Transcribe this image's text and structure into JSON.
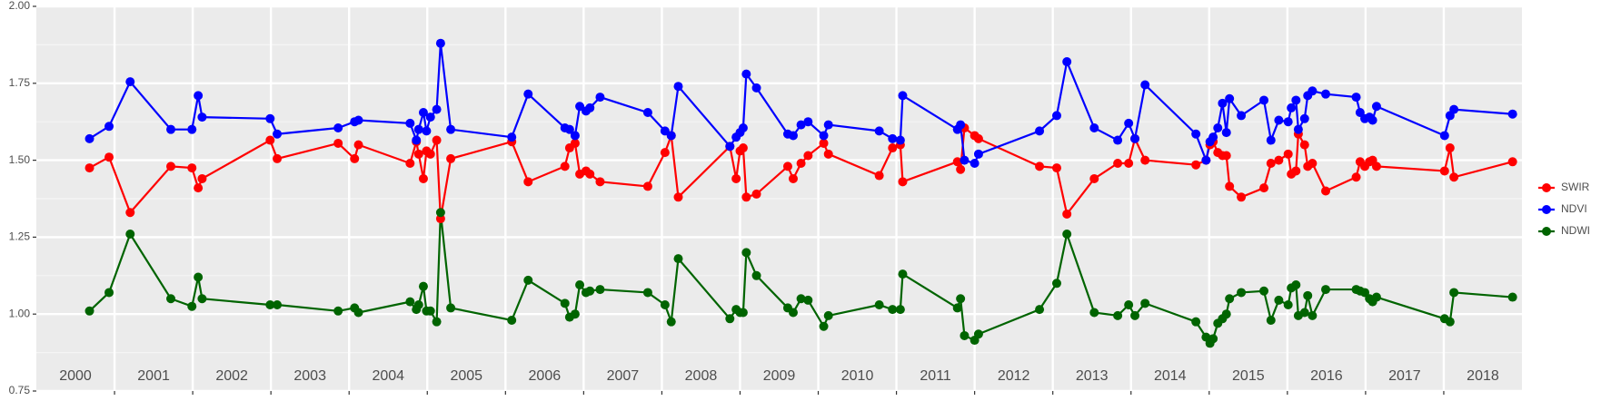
{
  "chart_data": {
    "type": "line",
    "x": [
      2000.68,
      2000.93,
      2001.2,
      2001.72,
      2001.99,
      2002.07,
      2002.12,
      2002.99,
      2003.08,
      2003.86,
      2004.07,
      2004.12,
      2004.78,
      2004.86,
      2004.89,
      2004.95,
      2004.99,
      2005.04,
      2005.12,
      2005.17,
      2005.3,
      2006.08,
      2006.29,
      2006.76,
      2006.82,
      2006.89,
      2006.95,
      2007.03,
      2007.08,
      2007.21,
      2007.82,
      2008.04,
      2008.12,
      2008.21,
      2008.87,
      2008.95,
      2009.0,
      2009.04,
      2009.08,
      2009.21,
      2009.61,
      2009.68,
      2009.78,
      2009.87,
      2010.07,
      2010.13,
      2010.78,
      2010.95,
      2011.05,
      2011.08,
      2011.78,
      2011.82,
      2011.87,
      2012.0,
      2012.05,
      2012.83,
      2013.05,
      2013.18,
      2013.53,
      2013.83,
      2013.97,
      2014.05,
      2014.18,
      2014.83,
      2014.96,
      2015.01,
      2015.05,
      2015.11,
      2015.17,
      2015.22,
      2015.26,
      2015.41,
      2015.7,
      2015.79,
      2015.89,
      2016.01,
      2016.05,
      2016.11,
      2016.14,
      2016.22,
      2016.26,
      2016.32,
      2016.49,
      2016.88,
      2016.93,
      2016.99,
      2017.05,
      2017.09,
      2017.14,
      2018.01,
      2018.08,
      2018.13,
      2018.88
    ],
    "series": [
      {
        "name": "SWIR",
        "color": "#ff0000",
        "values": [
          1.475,
          1.51,
          1.33,
          1.48,
          1.475,
          1.41,
          1.44,
          1.565,
          1.505,
          1.555,
          1.505,
          1.55,
          1.49,
          1.56,
          1.52,
          1.44,
          1.53,
          1.52,
          1.565,
          1.31,
          1.505,
          1.56,
          1.43,
          1.48,
          1.54,
          1.555,
          1.455,
          1.465,
          1.455,
          1.43,
          1.415,
          1.525,
          1.58,
          1.38,
          1.545,
          1.44,
          1.53,
          1.54,
          1.38,
          1.39,
          1.48,
          1.44,
          1.49,
          1.515,
          1.555,
          1.52,
          1.45,
          1.54,
          1.55,
          1.43,
          1.495,
          1.47,
          1.605,
          1.58,
          1.57,
          1.48,
          1.475,
          1.325,
          1.44,
          1.49,
          1.49,
          1.57,
          1.5,
          1.485,
          1.5,
          1.55,
          1.56,
          1.525,
          1.515,
          1.515,
          1.415,
          1.38,
          1.41,
          1.49,
          1.5,
          1.52,
          1.455,
          1.465,
          1.585,
          1.55,
          1.48,
          1.49,
          1.4,
          1.445,
          1.495,
          1.48,
          1.495,
          1.5,
          1.48,
          1.465,
          1.54,
          1.445,
          1.495
        ]
      },
      {
        "name": "NDVI",
        "color": "#0000ff",
        "values": [
          1.57,
          1.61,
          1.755,
          1.6,
          1.6,
          1.71,
          1.64,
          1.635,
          1.585,
          1.605,
          1.625,
          1.63,
          1.62,
          1.565,
          1.6,
          1.655,
          1.595,
          1.64,
          1.665,
          1.88,
          1.6,
          1.575,
          1.715,
          1.605,
          1.6,
          1.58,
          1.675,
          1.66,
          1.67,
          1.705,
          1.655,
          1.595,
          1.58,
          1.74,
          1.545,
          1.575,
          1.59,
          1.605,
          1.78,
          1.735,
          1.585,
          1.58,
          1.615,
          1.625,
          1.58,
          1.615,
          1.595,
          1.57,
          1.565,
          1.71,
          1.6,
          1.615,
          1.5,
          1.49,
          1.52,
          1.595,
          1.645,
          1.82,
          1.605,
          1.565,
          1.62,
          1.57,
          1.745,
          1.585,
          1.5,
          1.56,
          1.575,
          1.605,
          1.685,
          1.59,
          1.7,
          1.645,
          1.695,
          1.565,
          1.63,
          1.625,
          1.67,
          1.695,
          1.6,
          1.635,
          1.71,
          1.725,
          1.715,
          1.705,
          1.655,
          1.635,
          1.64,
          1.63,
          1.675,
          1.58,
          1.645,
          1.665,
          1.65
        ]
      },
      {
        "name": "NDWI",
        "color": "#006400",
        "values": [
          1.01,
          1.07,
          1.26,
          1.05,
          1.025,
          1.12,
          1.05,
          1.03,
          1.03,
          1.01,
          1.02,
          1.005,
          1.04,
          1.015,
          1.03,
          1.09,
          1.01,
          1.01,
          0.975,
          1.33,
          1.02,
          0.98,
          1.11,
          1.035,
          0.99,
          1.0,
          1.095,
          1.07,
          1.075,
          1.08,
          1.07,
          1.03,
          0.975,
          1.18,
          0.985,
          1.015,
          1.005,
          1.005,
          1.2,
          1.125,
          1.02,
          1.005,
          1.05,
          1.045,
          0.96,
          0.995,
          1.03,
          1.015,
          1.015,
          1.13,
          1.02,
          1.05,
          0.93,
          0.915,
          0.935,
          1.015,
          1.1,
          1.26,
          1.005,
          0.995,
          1.03,
          0.995,
          1.035,
          0.975,
          0.925,
          0.905,
          0.92,
          0.97,
          0.985,
          1.0,
          1.05,
          1.07,
          1.075,
          0.98,
          1.045,
          1.03,
          1.085,
          1.095,
          0.995,
          1.005,
          1.06,
          0.995,
          1.08,
          1.08,
          1.075,
          1.07,
          1.05,
          1.04,
          1.055,
          0.985,
          0.975,
          1.07,
          1.055
        ]
      }
    ],
    "xlim": [
      2000,
      2019
    ],
    "xgrid": [
      2001,
      2002,
      2003,
      2004,
      2005,
      2006,
      2007,
      2008,
      2009,
      2010,
      2011,
      2012,
      2013,
      2014,
      2015,
      2016,
      2017,
      2018
    ],
    "ylim": [
      0.75,
      2.0
    ],
    "yticks": [
      {
        "value": 0.75,
        "label": "0.75"
      },
      {
        "value": 1.0,
        "label": "1.00"
      },
      {
        "value": 1.25,
        "label": "1.25"
      },
      {
        "value": 1.5,
        "label": "1.50"
      },
      {
        "value": 1.75,
        "label": "1.75"
      },
      {
        "value": 2.0,
        "label": "2.00"
      }
    ],
    "annotations": [
      {
        "x": 2000.5,
        "text": "2000"
      },
      {
        "x": 2001.5,
        "text": "2001"
      },
      {
        "x": 2002.5,
        "text": "2002"
      },
      {
        "x": 2003.5,
        "text": "2003"
      },
      {
        "x": 2004.5,
        "text": "2004"
      },
      {
        "x": 2005.5,
        "text": "2005"
      },
      {
        "x": 2006.5,
        "text": "2006"
      },
      {
        "x": 2007.5,
        "text": "2007"
      },
      {
        "x": 2008.5,
        "text": "2008"
      },
      {
        "x": 2009.5,
        "text": "2009"
      },
      {
        "x": 2010.5,
        "text": "2010"
      },
      {
        "x": 2011.5,
        "text": "2011"
      },
      {
        "x": 2012.5,
        "text": "2012"
      },
      {
        "x": 2013.5,
        "text": "2013"
      },
      {
        "x": 2014.5,
        "text": "2014"
      },
      {
        "x": 2015.5,
        "text": "2015"
      },
      {
        "x": 2016.5,
        "text": "2016"
      },
      {
        "x": 2017.5,
        "text": "2017"
      },
      {
        "x": 2018.5,
        "text": "2018"
      }
    ],
    "grid": true,
    "legend": "right"
  }
}
